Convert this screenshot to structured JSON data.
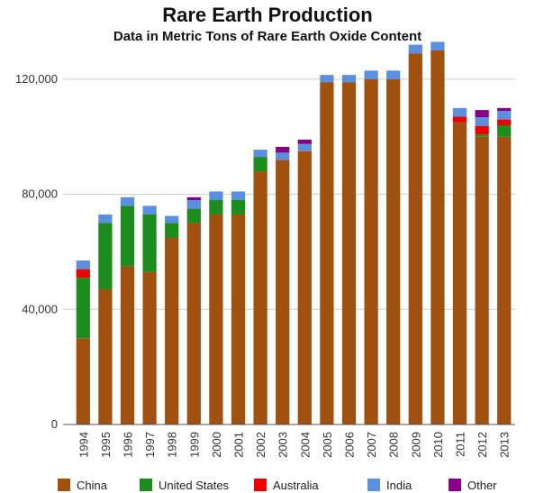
{
  "chart_data": {
    "type": "bar",
    "stacked": true,
    "title": "Rare Earth Production",
    "subtitle": "Data in Metric Tons of Rare Earth Oxide Content",
    "xlabel": "",
    "ylabel": "",
    "ylim": [
      0,
      130000
    ],
    "yticks": [
      0,
      40000,
      80000,
      120000
    ],
    "ytick_labels": [
      "0",
      "40,000",
      "80,000",
      "120,000"
    ],
    "grid": true,
    "legend_position": "bottom",
    "categories": [
      "1994",
      "1995",
      "1996",
      "1997",
      "1998",
      "1999",
      "2000",
      "2001",
      "2002",
      "2003",
      "2004",
      "2005",
      "2006",
      "2007",
      "2008",
      "2009",
      "2010",
      "2011",
      "2012",
      "2013"
    ],
    "series": [
      {
        "name": "China",
        "color": "#a0500f",
        "values": [
          30000,
          47000,
          55000,
          53000,
          65000,
          70000,
          73000,
          73000,
          88000,
          92000,
          95000,
          119000,
          119000,
          120000,
          120000,
          129000,
          130000,
          105000,
          100000,
          100000
        ]
      },
      {
        "name": "United States",
        "color": "#1c8c1c",
        "values": [
          21000,
          23000,
          21000,
          20000,
          5000,
          5000,
          5000,
          5000,
          5000,
          0,
          0,
          0,
          0,
          0,
          0,
          0,
          0,
          0,
          800,
          4000
        ]
      },
      {
        "name": "Australia",
        "color": "#ee0000",
        "values": [
          3000,
          0,
          0,
          0,
          0,
          0,
          0,
          0,
          0,
          0,
          0,
          0,
          0,
          0,
          0,
          0,
          0,
          2000,
          3000,
          2000
        ]
      },
      {
        "name": "India",
        "color": "#5b8fe0",
        "values": [
          3000,
          3000,
          3000,
          3000,
          2500,
          3000,
          3000,
          3000,
          2500,
          2500,
          2500,
          2500,
          2500,
          3000,
          3000,
          3000,
          3000,
          3000,
          3000,
          3000
        ]
      },
      {
        "name": "Other",
        "color": "#880088",
        "values": [
          0,
          0,
          0,
          0,
          0,
          1000,
          0,
          0,
          0,
          2000,
          1500,
          0,
          0,
          0,
          0,
          0,
          0,
          0,
          2500,
          1000
        ]
      }
    ]
  }
}
